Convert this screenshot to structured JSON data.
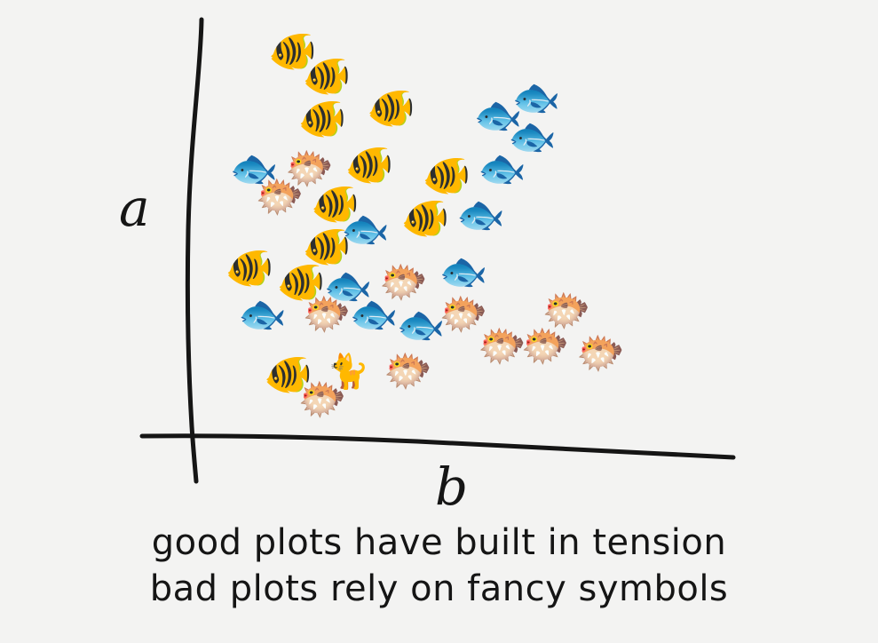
{
  "chart_data": {
    "type": "scatter",
    "title": "",
    "xlabel": "b",
    "ylabel": "a",
    "xlim": [
      0,
      100
    ],
    "ylim": [
      0,
      100
    ],
    "grid": false,
    "legend": "none",
    "series": [
      {
        "marker": "tropical-fish",
        "points": [
          {
            "x": 14,
            "y": 100
          },
          {
            "x": 22,
            "y": 93
          },
          {
            "x": 21,
            "y": 81
          },
          {
            "x": 37,
            "y": 84
          },
          {
            "x": 32,
            "y": 68
          },
          {
            "x": 24,
            "y": 57
          },
          {
            "x": 50,
            "y": 65
          },
          {
            "x": 45,
            "y": 53
          },
          {
            "x": 22,
            "y": 45
          },
          {
            "x": 4,
            "y": 39
          },
          {
            "x": 16,
            "y": 35
          },
          {
            "x": 13,
            "y": 9
          }
        ]
      },
      {
        "marker": "fish",
        "points": [
          {
            "x": 62,
            "y": 82
          },
          {
            "x": 71,
            "y": 87
          },
          {
            "x": 70,
            "y": 76
          },
          {
            "x": 63,
            "y": 67
          },
          {
            "x": 5,
            "y": 67
          },
          {
            "x": 58,
            "y": 54
          },
          {
            "x": 31,
            "y": 50
          },
          {
            "x": 54,
            "y": 38
          },
          {
            "x": 27,
            "y": 34
          },
          {
            "x": 7,
            "y": 26
          },
          {
            "x": 33,
            "y": 26
          },
          {
            "x": 44,
            "y": 23
          }
        ]
      },
      {
        "marker": "blowfish",
        "points": [
          {
            "x": 18,
            "y": 67
          },
          {
            "x": 11,
            "y": 59
          },
          {
            "x": 40,
            "y": 35
          },
          {
            "x": 22,
            "y": 26
          },
          {
            "x": 54,
            "y": 26
          },
          {
            "x": 78,
            "y": 27
          },
          {
            "x": 63,
            "y": 17
          },
          {
            "x": 73,
            "y": 17
          },
          {
            "x": 86,
            "y": 15
          },
          {
            "x": 41,
            "y": 10
          },
          {
            "x": 21,
            "y": 2
          }
        ]
      },
      {
        "marker": "cat",
        "points": [
          {
            "x": 27,
            "y": 10
          }
        ]
      }
    ]
  },
  "caption": {
    "line1": "good plots have built in tension",
    "line2": "bad plots rely on fancy symbols"
  },
  "marker_glyphs": {
    "tropical-fish": "🐠",
    "fish": "🐟",
    "blowfish": "🐡",
    "cat": "🐈"
  },
  "colors": {
    "background": "#f3f3f2",
    "ink": "#151515"
  }
}
